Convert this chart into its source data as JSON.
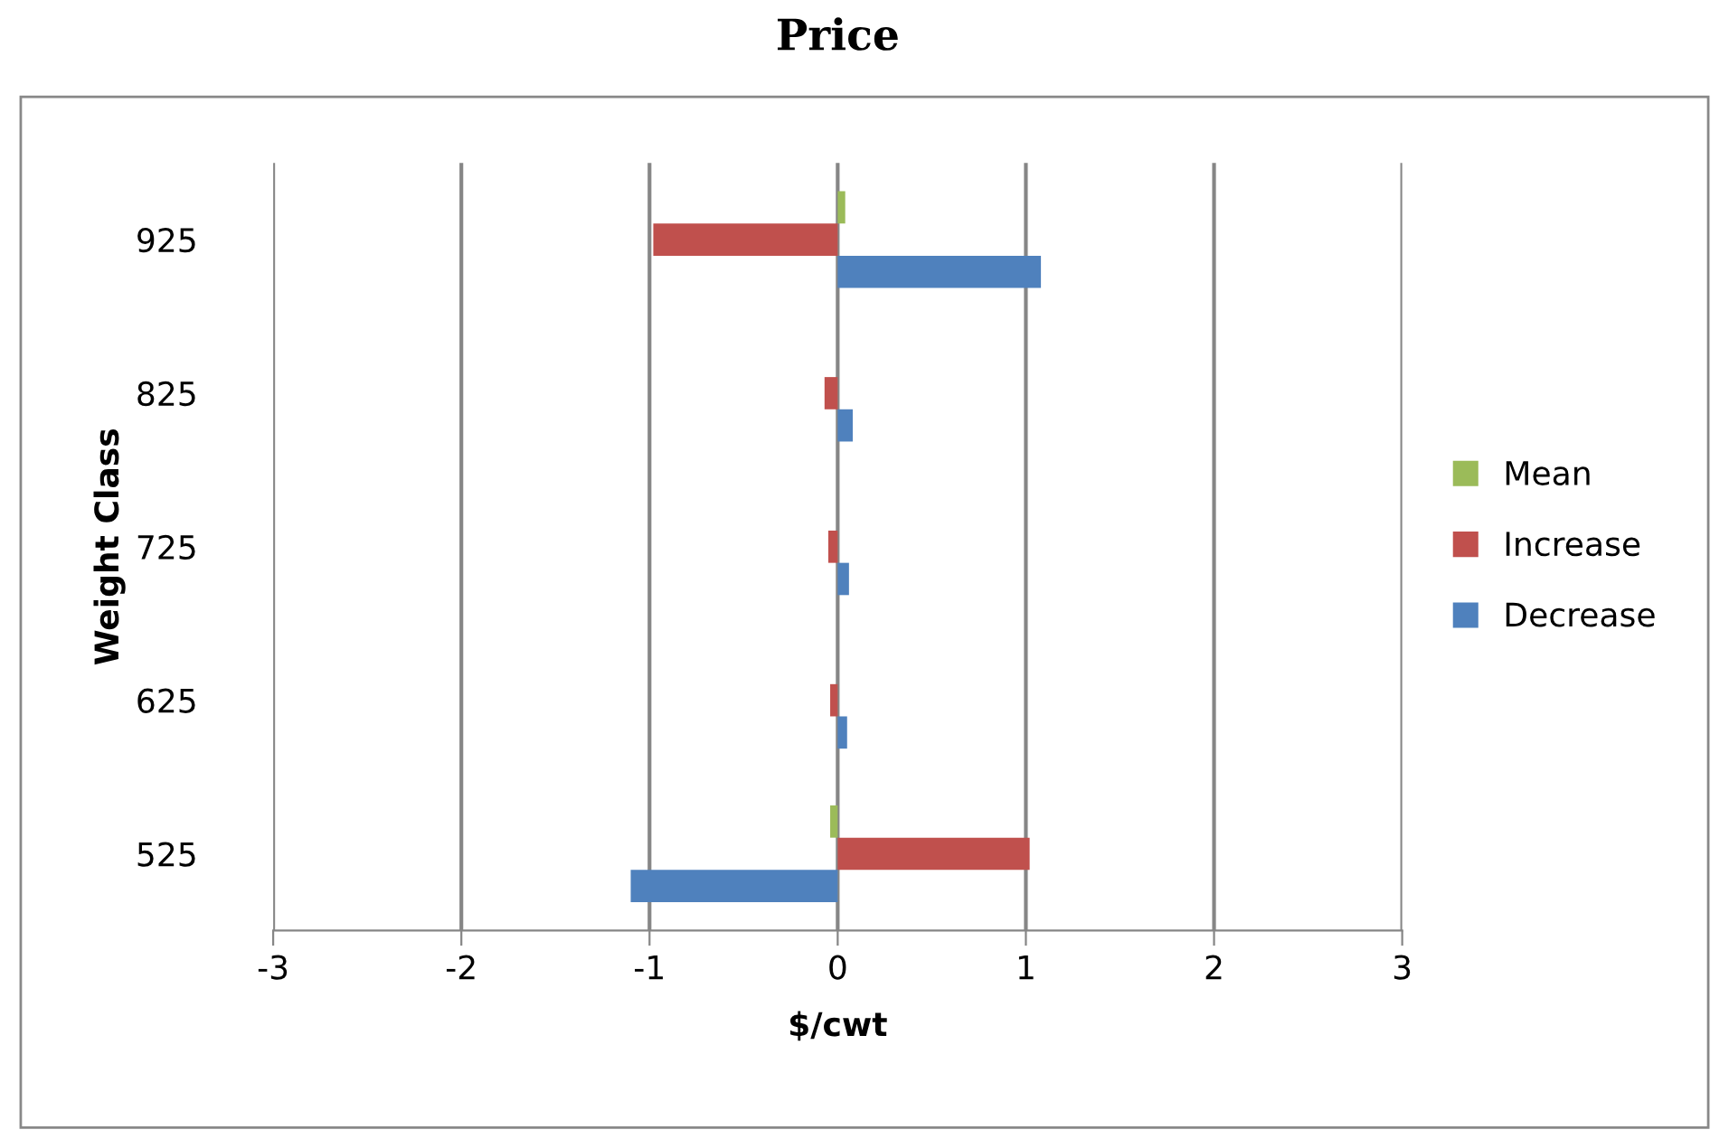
{
  "chart_data": {
    "type": "bar",
    "orientation": "horizontal",
    "title": "Price",
    "xlabel": "$/cwt",
    "ylabel": "Weight Class",
    "categories": [
      "925",
      "825",
      "725",
      "625",
      "525"
    ],
    "series": [
      {
        "name": "Mean",
        "color": "#9bbb59",
        "values": [
          0.04,
          0,
          0,
          0,
          -0.04
        ]
      },
      {
        "name": "Increase",
        "color": "#c0504d",
        "values": [
          -0.98,
          -0.07,
          -0.05,
          -0.04,
          1.02
        ]
      },
      {
        "name": "Decrease",
        "color": "#4f81bd",
        "values": [
          1.08,
          0.08,
          0.06,
          0.05,
          -1.1
        ]
      }
    ],
    "xlim": [
      -3,
      3
    ],
    "xticks": [
      -3,
      -2,
      -1,
      0,
      1,
      2,
      3
    ],
    "grid": "x",
    "legend": "right"
  }
}
